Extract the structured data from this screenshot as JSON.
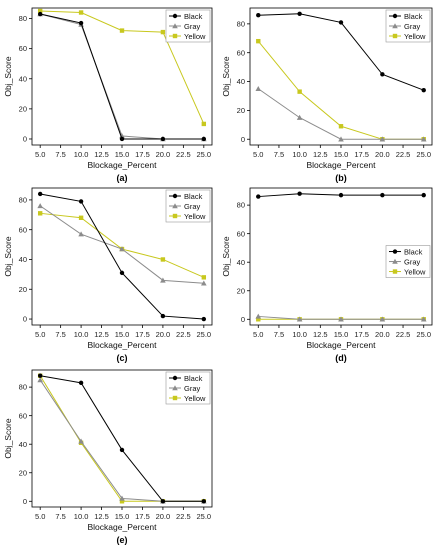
{
  "chart_data": [
    {
      "type": "line",
      "panel_label": "(a)",
      "xlabel": "Blockage_Percent",
      "ylabel": "Obj_Score",
      "x": [
        5.0,
        10.0,
        15.0,
        20.0,
        25.0
      ],
      "xticks": [
        "5.0",
        "7.5",
        "10.0",
        "12.5",
        "15.0",
        "17.5",
        "20.0",
        "22.5",
        "25.0"
      ],
      "xlim": [
        4.0,
        26.0
      ],
      "yticks": [
        0,
        20,
        40,
        60,
        80
      ],
      "ylim": [
        -4,
        87
      ],
      "legend": "top-right",
      "series": [
        {
          "name": "Black",
          "values": [
            83,
            77,
            0,
            0,
            0
          ]
        },
        {
          "name": "Gray",
          "values": [
            83,
            76,
            2,
            0,
            0
          ]
        },
        {
          "name": "Yellow",
          "values": [
            85,
            84,
            72,
            71,
            10
          ]
        }
      ]
    },
    {
      "type": "line",
      "panel_label": "(b)",
      "xlabel": "Blockage_Percent",
      "ylabel": "Obj_Score",
      "x": [
        5.0,
        10.0,
        15.0,
        20.0,
        25.0
      ],
      "xticks": [
        "5.0",
        "7.5",
        "10.0",
        "12.5",
        "15.0",
        "17.5",
        "20.0",
        "22.5",
        "25.0"
      ],
      "xlim": [
        4.0,
        26.0
      ],
      "yticks": [
        0,
        20,
        40,
        60,
        80
      ],
      "ylim": [
        -4,
        91
      ],
      "legend": "top-right",
      "series": [
        {
          "name": "Black",
          "values": [
            86,
            87,
            81,
            45,
            34
          ]
        },
        {
          "name": "Gray",
          "values": [
            35,
            15,
            0,
            0,
            0
          ]
        },
        {
          "name": "Yellow",
          "values": [
            68,
            33,
            9,
            0,
            0
          ]
        }
      ]
    },
    {
      "type": "line",
      "panel_label": "(c)",
      "xlabel": "Blockage_Percent",
      "ylabel": "Obj_Score",
      "x": [
        5.0,
        10.0,
        15.0,
        20.0,
        25.0
      ],
      "xticks": [
        "5.0",
        "7.5",
        "10.0",
        "12.5",
        "15.0",
        "17.5",
        "20.0",
        "22.5",
        "25.0"
      ],
      "xlim": [
        4.0,
        26.0
      ],
      "yticks": [
        0,
        20,
        40,
        60,
        80
      ],
      "ylim": [
        -4,
        88
      ],
      "legend": "top-right",
      "series": [
        {
          "name": "Black",
          "values": [
            84,
            79,
            31,
            2,
            0
          ]
        },
        {
          "name": "Gray",
          "values": [
            76,
            57,
            47,
            26,
            24
          ]
        },
        {
          "name": "Yellow",
          "values": [
            71,
            68,
            47,
            40,
            28
          ]
        }
      ]
    },
    {
      "type": "line",
      "panel_label": "(d)",
      "xlabel": "Blockage_Percent",
      "ylabel": "Obj_Score",
      "x": [
        5.0,
        10.0,
        15.0,
        20.0,
        25.0
      ],
      "xticks": [
        "5.0",
        "7.5",
        "10.0",
        "12.5",
        "15.0",
        "17.5",
        "20.0",
        "22.5",
        "25.0"
      ],
      "xlim": [
        4.0,
        26.0
      ],
      "yticks": [
        0,
        20,
        40,
        60,
        80
      ],
      "ylim": [
        -4,
        92
      ],
      "legend": "right",
      "series": [
        {
          "name": "Black",
          "values": [
            86,
            88,
            87,
            87,
            87
          ]
        },
        {
          "name": "Gray",
          "values": [
            2,
            0,
            0,
            0,
            0
          ]
        },
        {
          "name": "Yellow",
          "values": [
            0,
            0,
            0,
            0,
            0
          ]
        }
      ]
    },
    {
      "type": "line",
      "panel_label": "(e)",
      "xlabel": "Blockage_Percent",
      "ylabel": "Obj_Score",
      "x": [
        5.0,
        10.0,
        15.0,
        20.0,
        25.0
      ],
      "xticks": [
        "5.0",
        "7.5",
        "10.0",
        "12.5",
        "15.0",
        "17.5",
        "20.0",
        "22.5",
        "25.0"
      ],
      "xlim": [
        4.0,
        26.0
      ],
      "yticks": [
        0,
        20,
        40,
        60,
        80
      ],
      "ylim": [
        -4,
        92
      ],
      "legend": "top-right",
      "series": [
        {
          "name": "Black",
          "values": [
            88,
            83,
            36,
            0,
            0
          ]
        },
        {
          "name": "Gray",
          "values": [
            85,
            42,
            2,
            0,
            0
          ]
        },
        {
          "name": "Yellow",
          "values": [
            88,
            41,
            0,
            0,
            0
          ]
        }
      ]
    }
  ],
  "style": {
    "series_colors": {
      "Black": "#000000",
      "Gray": "#8c8c8c",
      "Yellow": "#c8c81e"
    },
    "series_markers": {
      "Black": "circle",
      "Gray": "triangle",
      "Yellow": "square"
    },
    "axis_color": "#000000"
  }
}
